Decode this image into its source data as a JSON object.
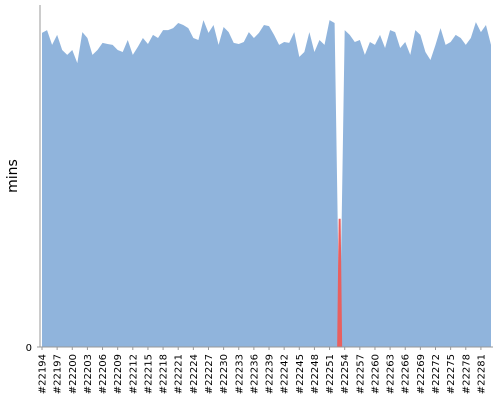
{
  "chart_data": {
    "type": "area",
    "y_label": "mins",
    "categories": [
      "#22194",
      null,
      null,
      "#22197",
      null,
      null,
      "#22200",
      null,
      null,
      "#22203",
      null,
      null,
      "#22206",
      null,
      null,
      "#22209",
      null,
      null,
      "#22212",
      null,
      null,
      "#22215",
      null,
      null,
      "#22218",
      null,
      null,
      "#22221",
      null,
      null,
      "#22224",
      null,
      null,
      "#22227",
      null,
      null,
      "#22230",
      null,
      null,
      "#22233",
      null,
      null,
      "#22236",
      null,
      null,
      "#22239",
      null,
      null,
      "#22242",
      null,
      null,
      "#22245",
      null,
      null,
      "#22248",
      null,
      null,
      "#22251",
      null,
      null,
      "#22254",
      null,
      null,
      "#22257",
      null,
      null,
      "#22260",
      null,
      null,
      "#22263",
      null,
      null,
      "#22266",
      null,
      null,
      "#22269",
      null,
      null,
      "#22272",
      null,
      null,
      "#22275",
      null,
      null,
      "#22278",
      null,
      null,
      "#22281",
      null,
      null
    ],
    "series": [
      {
        "color": "#90b4dc",
        "values": [
          11.02,
          11.12,
          10.6,
          10.95,
          10.42,
          10.25,
          10.42,
          9.96,
          11.05,
          10.84,
          10.25,
          10.42,
          10.67,
          10.63,
          10.6,
          10.42,
          10.35,
          10.77,
          10.25,
          10.53,
          10.84,
          10.63,
          10.95,
          10.84,
          11.12,
          11.12,
          11.19,
          11.37,
          11.3,
          11.19,
          10.84,
          10.77,
          11.47,
          11.02,
          11.3,
          10.6,
          11.23,
          11.05,
          10.67,
          10.63,
          10.7,
          11.05,
          10.84,
          11.02,
          11.3,
          11.26,
          10.95,
          10.6,
          10.7,
          10.67,
          11.05,
          10.18,
          10.35,
          11.05,
          10.35,
          10.77,
          10.6,
          11.47,
          11.37,
          0,
          11.12,
          10.95,
          10.7,
          10.77,
          10.25,
          10.7,
          10.6,
          10.95,
          10.49,
          11.12,
          11.05,
          10.49,
          10.7,
          10.25,
          11.12,
          10.95,
          10.35,
          10.07,
          10.6,
          11.19,
          10.6,
          10.7,
          10.95,
          10.84,
          10.6,
          10.84,
          11.4,
          11.05,
          11.3,
          10.6
        ]
      },
      {
        "color": "#e86060",
        "values": [
          null,
          null,
          null,
          null,
          null,
          null,
          null,
          null,
          null,
          null,
          null,
          null,
          null,
          null,
          null,
          null,
          null,
          null,
          null,
          null,
          null,
          null,
          null,
          null,
          null,
          null,
          null,
          null,
          null,
          null,
          null,
          null,
          null,
          null,
          null,
          null,
          null,
          null,
          null,
          null,
          null,
          null,
          null,
          null,
          null,
          null,
          null,
          null,
          null,
          null,
          null,
          null,
          null,
          null,
          null,
          null,
          null,
          null,
          null,
          4.5,
          null,
          null,
          null,
          null,
          null,
          null,
          null,
          null,
          null,
          null,
          null,
          null,
          null,
          null,
          null,
          null,
          null,
          null,
          null,
          null,
          null,
          null,
          null,
          null,
          null,
          null,
          null,
          null,
          null,
          null
        ]
      }
    ],
    "ylim": [
      0,
      12
    ],
    "yticks": [
      0
    ]
  }
}
